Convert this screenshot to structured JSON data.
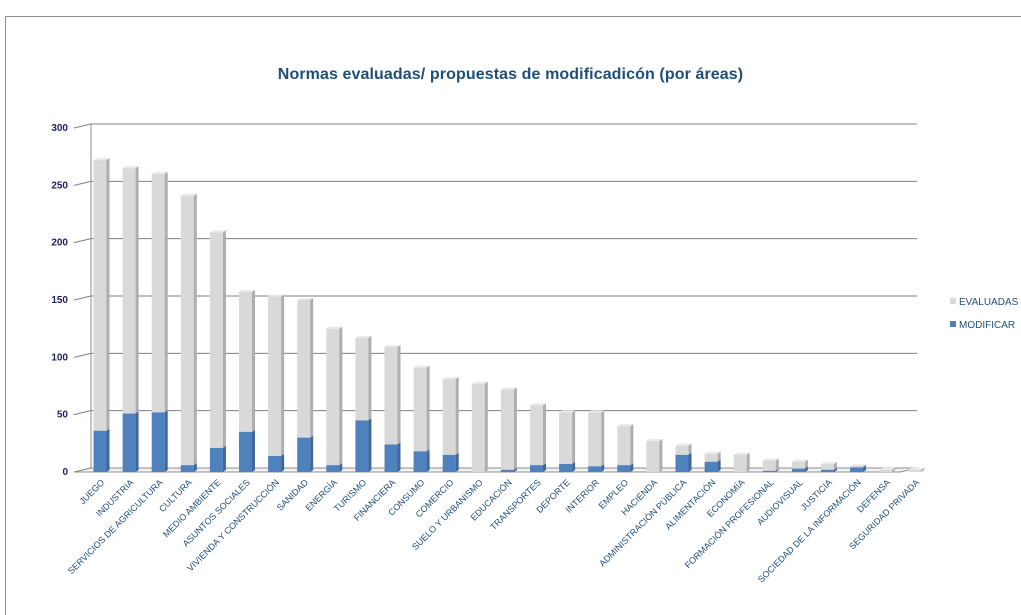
{
  "chart_data": {
    "type": "bar",
    "stacked": true,
    "title": "Normas evaluadas/ propuestas  de modificadicón (por áreas)",
    "xlabel": "",
    "ylabel": "",
    "ylim": [
      0,
      300
    ],
    "yticks": [
      0,
      50,
      100,
      150,
      200,
      250,
      300
    ],
    "grid": true,
    "legend_position": "right",
    "categories": [
      "JUEGO",
      "INDUSTRIA",
      "SERVICIOS DE AGRICULTURA",
      "CULTURA",
      "MEDIO AMBIENTE",
      "ASUNTOS SOCIALES",
      "VIVIENDA Y CONSTRUCCIÓN",
      "SANIDAD",
      "ENERGÍA",
      "TURISMO",
      "FINANCIERA",
      "CONSUMO",
      "COMERCIO",
      "SUELO Y URBANISMO",
      "EDUCACIÓN",
      "TRANSPORTES",
      "DEPORTE",
      "INTERIOR",
      "EMPLEO",
      "HACIENDA",
      "ADMINISTRACIÓN PÚBLICA",
      "ALIMENTACIÓN",
      "ECONOMÍA",
      "FORMACIÓN PROFESIONAL",
      "AUDIOVISUAL",
      "JUSTICIA",
      "SOCIEDAD DE LA INFORMACIÓN",
      "DEFENSA",
      "SEGURIDAD PRIVADA"
    ],
    "series": [
      {
        "name": "MODIFICAR",
        "color": "#4f81bd",
        "values": [
          36,
          51,
          52,
          6,
          21,
          35,
          14,
          30,
          6,
          45,
          24,
          18,
          15,
          0,
          2,
          6,
          7,
          5,
          6,
          0,
          15,
          9,
          0,
          1,
          3,
          2,
          4,
          0,
          0
        ]
      },
      {
        "name": "EVALUADAS",
        "color": "#d9d9d9",
        "values": [
          236,
          214,
          208,
          235,
          188,
          122,
          139,
          120,
          119,
          72,
          85,
          73,
          66,
          77,
          70,
          52,
          45,
          47,
          34,
          27,
          8,
          7,
          15,
          9,
          6,
          5,
          1,
          2,
          2
        ]
      }
    ]
  }
}
